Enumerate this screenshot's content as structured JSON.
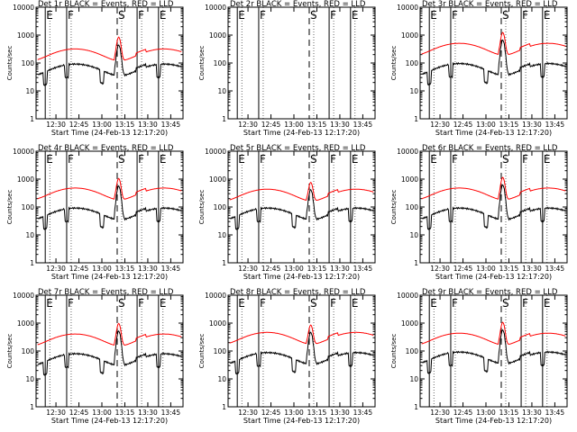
{
  "colors": {
    "events": "#000000",
    "lld": "#ff0000",
    "background": "#ffffff"
  },
  "common": {
    "ylabel": "Counts/sec",
    "xlabel": "Start Time (24-Feb-13 12:17:20)",
    "yticks": [
      "1",
      "10",
      "100",
      "1000",
      "10000"
    ],
    "xticks": [
      "12:30",
      "12:45",
      "13:00",
      "13:15",
      "13:30",
      "13:45"
    ]
  },
  "chart_data": [
    {
      "type": "line",
      "title": "Det 1r  BLACK = Events, RED = LLD",
      "has_data": true,
      "lld_base": 220,
      "events_base": 115,
      "peak": 950,
      "markers": [
        {
          "label": "E",
          "x": "12:23"
        },
        {
          "label": "F",
          "x": "12:37"
        },
        {
          "label": "S",
          "x": "13:10"
        },
        {
          "label": "F",
          "x": "13:23"
        },
        {
          "label": "E",
          "x": "13:37"
        }
      ]
    },
    {
      "type": "line",
      "title": "Det 2r  BLACK = Events, RED = LLD",
      "has_data": false,
      "lld_base": 0,
      "events_base": 0,
      "peak": 0,
      "markers": [
        {
          "label": "E",
          "x": "12:23"
        },
        {
          "label": "F",
          "x": "12:37"
        },
        {
          "label": "S",
          "x": "13:10"
        },
        {
          "label": "F",
          "x": "13:23"
        },
        {
          "label": "E",
          "x": "13:37"
        }
      ]
    },
    {
      "type": "line",
      "title": "Det 3r  BLACK = Events, RED = LLD",
      "has_data": true,
      "lld_base": 350,
      "events_base": 120,
      "peak": 1400,
      "markers": [
        {
          "label": "E",
          "x": "12:23"
        },
        {
          "label": "F",
          "x": "12:37"
        },
        {
          "label": "S",
          "x": "13:10"
        },
        {
          "label": "F",
          "x": "13:23"
        },
        {
          "label": "E",
          "x": "13:37"
        }
      ]
    },
    {
      "type": "line",
      "title": "Det 4r  BLACK = Events, RED = LLD",
      "has_data": true,
      "lld_base": 330,
      "events_base": 115,
      "peak": 1200,
      "markers": [
        {
          "label": "E",
          "x": "12:23"
        },
        {
          "label": "F",
          "x": "12:37"
        },
        {
          "label": "S",
          "x": "13:10"
        },
        {
          "label": "F",
          "x": "13:23"
        },
        {
          "label": "E",
          "x": "13:37"
        }
      ]
    },
    {
      "type": "line",
      "title": "Det 5r  BLACK = Events, RED = LLD",
      "has_data": true,
      "lld_base": 300,
      "events_base": 115,
      "peak": 900,
      "markers": [
        {
          "label": "E",
          "x": "12:23"
        },
        {
          "label": "F",
          "x": "12:37"
        },
        {
          "label": "S",
          "x": "13:10"
        },
        {
          "label": "F",
          "x": "13:23"
        },
        {
          "label": "E",
          "x": "13:37"
        }
      ]
    },
    {
      "type": "line",
      "title": "Det 6r  BLACK = Events, RED = LLD",
      "has_data": true,
      "lld_base": 330,
      "events_base": 115,
      "peak": 1300,
      "markers": [
        {
          "label": "E",
          "x": "12:23"
        },
        {
          "label": "F",
          "x": "12:37"
        },
        {
          "label": "S",
          "x": "13:10"
        },
        {
          "label": "F",
          "x": "13:23"
        },
        {
          "label": "E",
          "x": "13:37"
        }
      ]
    },
    {
      "type": "line",
      "title": "Det 7r  BLACK = Events, RED = LLD",
      "has_data": true,
      "lld_base": 280,
      "events_base": 100,
      "peak": 1100,
      "markers": [
        {
          "label": "E",
          "x": "12:23"
        },
        {
          "label": "F",
          "x": "12:37"
        },
        {
          "label": "S",
          "x": "13:10"
        },
        {
          "label": "F",
          "x": "13:23"
        },
        {
          "label": "E",
          "x": "13:37"
        }
      ]
    },
    {
      "type": "line",
      "title": "Det 8r  BLACK = Events, RED = LLD",
      "has_data": true,
      "lld_base": 320,
      "events_base": 110,
      "peak": 1000,
      "markers": [
        {
          "label": "E",
          "x": "12:23"
        },
        {
          "label": "F",
          "x": "12:37"
        },
        {
          "label": "S",
          "x": "13:10"
        },
        {
          "label": "F",
          "x": "13:23"
        },
        {
          "label": "E",
          "x": "13:37"
        }
      ]
    },
    {
      "type": "line",
      "title": "Det 9r  BLACK = Events, RED = LLD",
      "has_data": true,
      "lld_base": 300,
      "events_base": 115,
      "peak": 1200,
      "markers": [
        {
          "label": "E",
          "x": "12:23"
        },
        {
          "label": "F",
          "x": "12:37"
        },
        {
          "label": "S",
          "x": "13:10"
        },
        {
          "label": "F",
          "x": "13:23"
        },
        {
          "label": "E",
          "x": "13:37"
        }
      ]
    }
  ]
}
